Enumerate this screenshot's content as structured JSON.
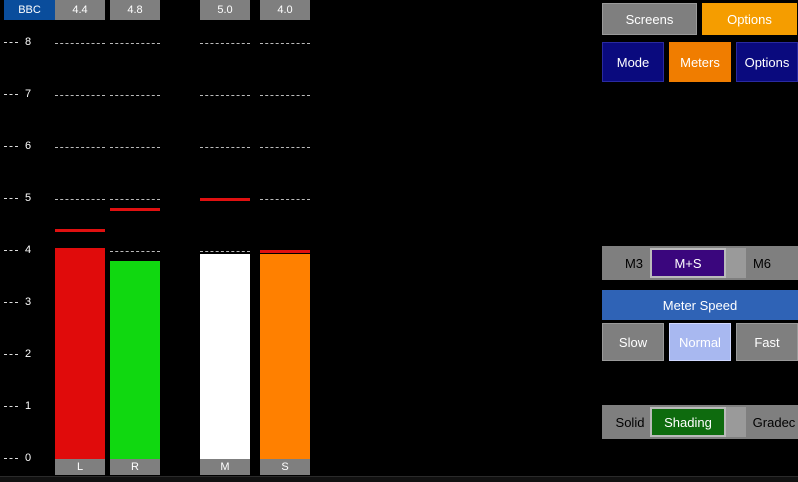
{
  "peak_readouts": {
    "brand": "BBC",
    "L": "4.4",
    "R": "4.8",
    "M": "5.0",
    "S": "4.0"
  },
  "scale": {
    "ticks": [
      "8",
      "7",
      "6",
      "5",
      "4",
      "3",
      "2",
      "1",
      "0"
    ]
  },
  "meters": [
    {
      "channel": "L",
      "level": 4.05,
      "peak": 4.4,
      "color": "#e00b0b"
    },
    {
      "channel": "R",
      "level": 3.8,
      "peak": 4.8,
      "color": "#10d810"
    },
    {
      "channel": "M",
      "level": 3.95,
      "peak": 5.0,
      "color": "#ffffff"
    },
    {
      "channel": "S",
      "level": 3.95,
      "peak": 4.0,
      "color": "#ff8000"
    }
  ],
  "nav": {
    "screens": "Screens",
    "options": "Options"
  },
  "menu": {
    "mode": "Mode",
    "meters": "Meters",
    "options": "Options"
  },
  "meter_mode": {
    "left": "M3",
    "selected": "M+S",
    "right": "M6"
  },
  "meter_speed": {
    "title": "Meter Speed",
    "slow": "Slow",
    "normal": "Normal",
    "fast": "Fast"
  },
  "fill_style": {
    "left": "Solid",
    "selected": "Shading",
    "right": "Gradec"
  },
  "colors": {
    "accent_orange": "#f59d00",
    "navy": "#0a0a7e",
    "speed_blue": "#2f63b6"
  }
}
